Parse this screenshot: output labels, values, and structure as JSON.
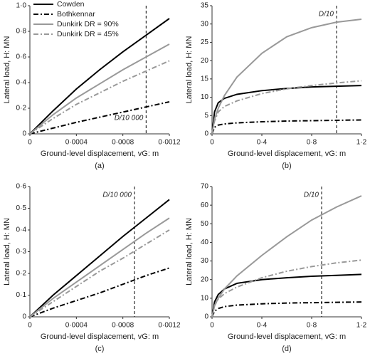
{
  "chart_data": [
    {
      "type": "line",
      "caption": "(a)",
      "x_label": "Ground-level displacement, vG: m",
      "y_label": "Lateral load, H: MN",
      "legend": "upper left",
      "x": [
        0,
        0.0002,
        0.0004,
        0.0006,
        0.0008,
        0.001,
        0.0012
      ],
      "series": [
        {
          "name": "Cowden",
          "color": "#000000",
          "dash": "solid",
          "values": [
            0,
            0.18,
            0.35,
            0.5,
            0.64,
            0.77,
            0.9
          ]
        },
        {
          "name": "Bothkennar",
          "color": "#000000",
          "dash": "dashdot",
          "values": [
            0,
            0.045,
            0.09,
            0.13,
            0.17,
            0.21,
            0.25
          ]
        },
        {
          "name": "Dunkirk DR = 90%",
          "color": "#999999",
          "dash": "solid",
          "values": [
            0,
            0.15,
            0.28,
            0.39,
            0.5,
            0.6,
            0.7
          ]
        },
        {
          "name": "Dunkirk DR = 45%",
          "color": "#999999",
          "dash": "dashdot",
          "values": [
            0,
            0.12,
            0.23,
            0.32,
            0.41,
            0.49,
            0.57
          ]
        }
      ],
      "xlim": [
        0,
        0.0012
      ],
      "xticks": [
        0,
        {
          "value": 0.0004,
          "label": "0·0004"
        },
        {
          "value": 0.0008,
          "label": "0·0008"
        },
        {
          "value": 0.0012,
          "label": "0·0012"
        }
      ],
      "ylim": [
        0,
        1
      ],
      "yticks": [
        0,
        {
          "value": 0.2,
          "label": "0·2"
        },
        {
          "value": 0.4,
          "label": "0·4"
        },
        {
          "value": 0.6,
          "label": "0·6"
        },
        {
          "value": 0.8,
          "label": "0·8"
        },
        {
          "value": 1,
          "label": "1·0"
        }
      ],
      "annotation": {
        "label": "D/10 000",
        "x": 0.001,
        "position": "bottom"
      }
    },
    {
      "type": "line",
      "caption": "(b)",
      "x_label": "Ground-level displacement, vG: m",
      "y_label": "Lateral load, H: MN",
      "x": [
        0,
        0.02,
        0.05,
        0.1,
        0.2,
        0.4,
        0.6,
        0.8,
        1.0,
        1.2
      ],
      "series": [
        {
          "color": "#000000",
          "dash": "solid",
          "values": [
            0,
            6,
            8.5,
            9.7,
            10.8,
            11.8,
            12.4,
            12.8,
            13.0,
            13.2
          ]
        },
        {
          "color": "#000000",
          "dash": "dashdot",
          "values": [
            0,
            1.8,
            2.4,
            2.7,
            3,
            3.3,
            3.5,
            3.6,
            3.7,
            3.8
          ]
        },
        {
          "color": "#999999",
          "dash": "solid",
          "values": [
            0,
            4,
            7,
            10.5,
            15.5,
            22,
            26.5,
            29,
            30.5,
            31.3
          ]
        },
        {
          "color": "#999999",
          "dash": "dashdot",
          "values": [
            0,
            3.5,
            6,
            7.5,
            9,
            11,
            12.3,
            13.2,
            13.9,
            14.5
          ]
        }
      ],
      "xlim": [
        0,
        1.2
      ],
      "xticks": [
        0,
        {
          "value": 0.4,
          "label": "0·4"
        },
        {
          "value": 0.8,
          "label": "0·8"
        },
        {
          "value": 1.2,
          "label": "1·2"
        }
      ],
      "ylim": [
        0,
        35
      ],
      "yticks": [
        0,
        5,
        10,
        15,
        20,
        25,
        30,
        35
      ],
      "annotation": {
        "label": "D/10",
        "x": 1.0,
        "position": "top"
      }
    },
    {
      "type": "line",
      "caption": "(c)",
      "x_label": "Ground-level displacement, vG: m",
      "y_label": "Lateral load, H: MN",
      "x": [
        0,
        0.0002,
        0.0004,
        0.0006,
        0.0008,
        0.001,
        0.0012
      ],
      "series": [
        {
          "color": "#000000",
          "dash": "solid",
          "values": [
            0,
            0.1,
            0.19,
            0.28,
            0.37,
            0.455,
            0.54
          ]
        },
        {
          "color": "#000000",
          "dash": "dashdot",
          "values": [
            0,
            0.04,
            0.075,
            0.11,
            0.15,
            0.19,
            0.225
          ]
        },
        {
          "color": "#999999",
          "dash": "solid",
          "values": [
            0,
            0.085,
            0.16,
            0.235,
            0.31,
            0.385,
            0.455
          ]
        },
        {
          "color": "#999999",
          "dash": "dashdot",
          "values": [
            0,
            0.07,
            0.14,
            0.21,
            0.27,
            0.335,
            0.4
          ]
        }
      ],
      "xlim": [
        0,
        0.0012
      ],
      "xticks": [
        0,
        {
          "value": 0.0004,
          "label": "0·0004"
        },
        {
          "value": 0.0008,
          "label": "0·0008"
        },
        {
          "value": 0.0012,
          "label": "0·0012"
        }
      ],
      "ylim": [
        0,
        0.6
      ],
      "yticks": [
        0,
        {
          "value": 0.1,
          "label": "0·1"
        },
        {
          "value": 0.2,
          "label": "0·2"
        },
        {
          "value": 0.3,
          "label": "0·3"
        },
        {
          "value": 0.4,
          "label": "0·4"
        },
        {
          "value": 0.5,
          "label": "0·5"
        },
        {
          "value": 0.6,
          "label": "0·6"
        }
      ],
      "annotation": {
        "label": "D/10 000",
        "x": 0.0009,
        "position": "top"
      }
    },
    {
      "type": "line",
      "caption": "(d)",
      "x_label": "Ground-level displacement, vG: m",
      "y_label": "Lateral load, H: MN",
      "x": [
        0,
        0.02,
        0.05,
        0.1,
        0.2,
        0.4,
        0.6,
        0.8,
        1.0,
        1.2
      ],
      "series": [
        {
          "color": "#000000",
          "dash": "solid",
          "values": [
            0,
            8,
            12,
            15,
            18,
            20,
            21,
            21.8,
            22.3,
            22.8
          ]
        },
        {
          "color": "#000000",
          "dash": "dashdot",
          "values": [
            0,
            3,
            4.5,
            5.5,
            6.3,
            7,
            7.4,
            7.6,
            7.8,
            8
          ]
        },
        {
          "color": "#999999",
          "dash": "solid",
          "values": [
            0,
            6,
            10,
            15,
            22,
            33,
            43,
            52,
            59,
            65
          ]
        },
        {
          "color": "#999999",
          "dash": "dashdot",
          "values": [
            0,
            6,
            9.5,
            12.5,
            16,
            21,
            24.5,
            27,
            29,
            30.5
          ]
        }
      ],
      "xlim": [
        0,
        1.2
      ],
      "xticks": [
        0,
        {
          "value": 0.4,
          "label": "0·4"
        },
        {
          "value": 0.8,
          "label": "0·8"
        },
        {
          "value": 1.2,
          "label": "1·2"
        }
      ],
      "ylim": [
        0,
        70
      ],
      "yticks": [
        0,
        10,
        20,
        30,
        40,
        50,
        60,
        70
      ],
      "annotation": {
        "label": "D/10",
        "x": 0.88,
        "position": "top"
      }
    }
  ]
}
